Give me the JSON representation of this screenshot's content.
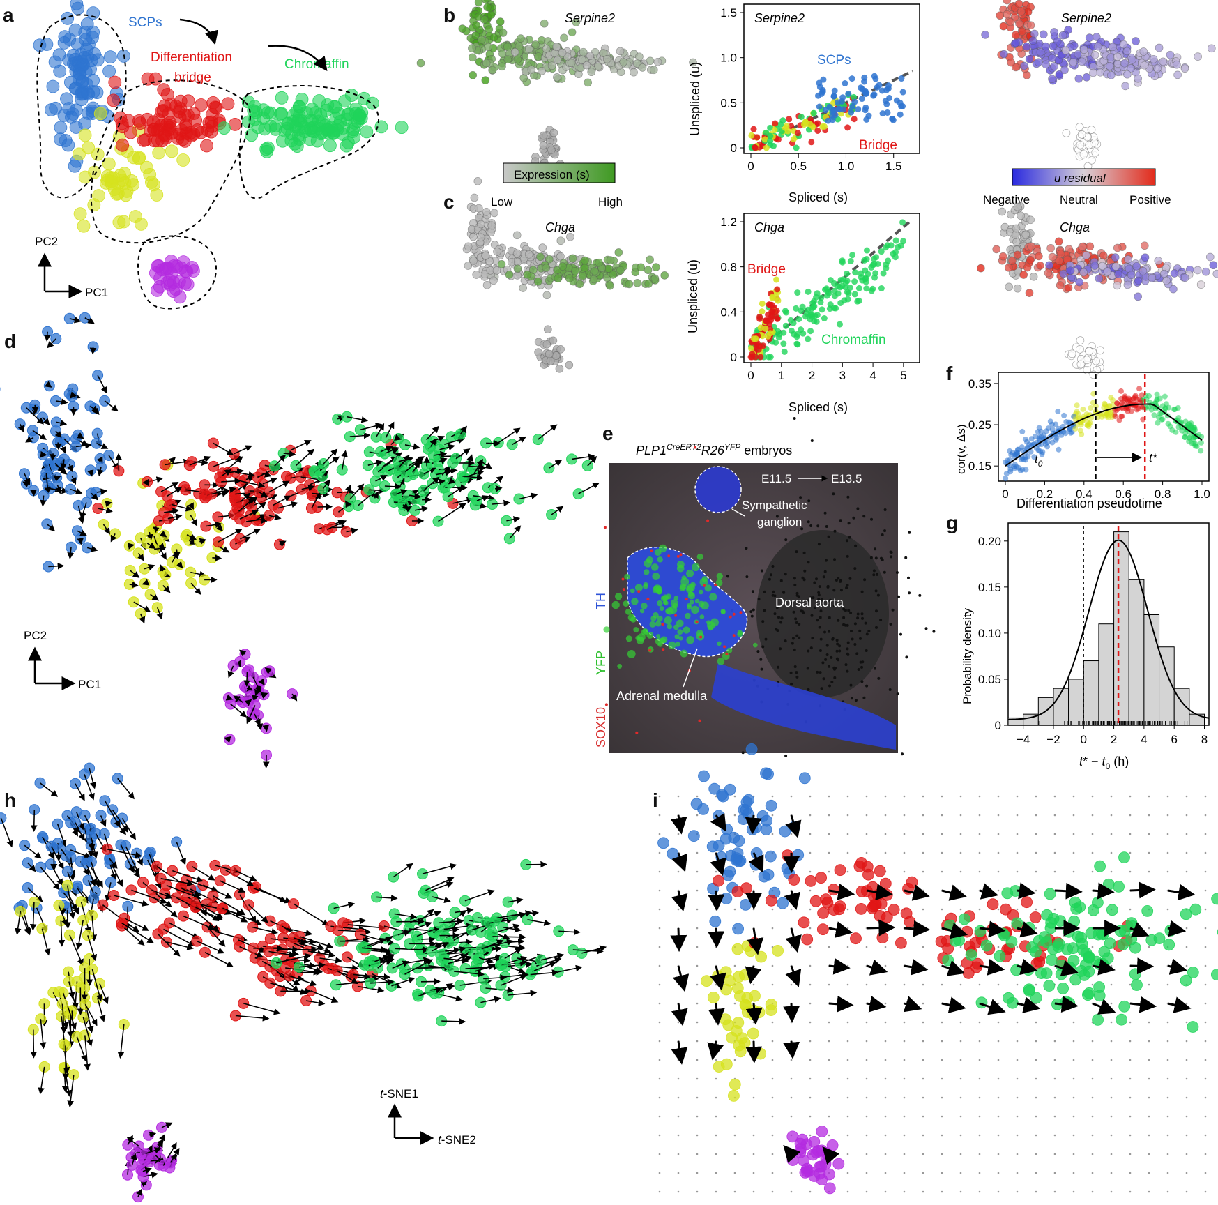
{
  "panel_letters": [
    "a",
    "b",
    "c",
    "d",
    "e",
    "f",
    "g",
    "h",
    "i"
  ],
  "colors": {
    "scp": "#2f74d0",
    "bridge": "#e01616",
    "yellow": "#d6e21e",
    "chromaffin": "#1fd45a",
    "purple": "#b42be0",
    "grey": "#9a9a9a",
    "green_expr": "#4a9a2a"
  },
  "panel_a": {
    "labels": {
      "scps": "SCPs",
      "bridge_line1": "Differentiation",
      "bridge_line2": "bridge",
      "chromaffin": "Chromaffin"
    },
    "axes": {
      "x": "PC1",
      "y": "PC2"
    }
  },
  "panel_b": {
    "gene": "Serpine2",
    "legend": {
      "title": "Expression (s)",
      "low": "Low",
      "high": "High"
    },
    "scatter": {
      "xlabel": "Spliced (s)",
      "ylabel": "Unspliced (u)",
      "xticks": [
        "0",
        "0.5",
        "1.0",
        "1.5"
      ],
      "yticks": [
        "0",
        "0.5",
        "1.0",
        "1.5"
      ],
      "annotations": {
        "scps": "SCPs",
        "bridge": "Bridge"
      }
    },
    "residual_legend": {
      "title": "u residual",
      "negative": "Negative",
      "neutral": "Neutral",
      "positive": "Positive"
    }
  },
  "panel_c": {
    "gene": "Chga",
    "scatter": {
      "xlabel": "Spliced (s)",
      "ylabel": "Unspliced (u)",
      "xticks": [
        "0",
        "1",
        "2",
        "3",
        "4",
        "5"
      ],
      "yticks": [
        "0",
        "0.4",
        "0.8",
        "1.2"
      ],
      "annotations": {
        "bridge": "Bridge",
        "chromaffin": "Chromaffin"
      }
    }
  },
  "panel_d": {
    "axes": {
      "x": "PC1",
      "y": "PC2"
    }
  },
  "panel_e": {
    "title": "PLP1CreERT2R26YFP embryos",
    "title_base1": "PLP1",
    "title_sup1": "CreERT2",
    "title_base2": "R26",
    "title_sup2": "YFP",
    "title_tail": " embryos",
    "time_from": "E11.5",
    "time_to": "E13.5",
    "labels": {
      "ganglion1": "Sympathetic",
      "ganglion2": "ganglion",
      "aorta": "Dorsal aorta",
      "medulla": "Adrenal medulla"
    },
    "channels": [
      {
        "name": "TH",
        "color": "#2f54d8"
      },
      {
        "name": "YFP",
        "color": "#2fc02f"
      },
      {
        "name": "SOX10",
        "color": "#d82f2f"
      }
    ]
  },
  "panel_f": {
    "ylabel": "cor(v, Δs)",
    "xlabel": "Differentiation pseudotime",
    "xticks": [
      "0",
      "0.2",
      "0.4",
      "0.6",
      "0.8",
      "1.0"
    ],
    "yticks": [
      "0.15",
      "0.25",
      "0.35"
    ],
    "t0_label": "t0",
    "tstar_label": "t*",
    "t0_value": 0.46,
    "tstar_value": 0.71
  },
  "panel_g": {
    "ylabel": "Probability density",
    "xlabel": "t* − t0 (h)",
    "xticks": [
      "−4",
      "−2",
      "0",
      "2",
      "4",
      "6",
      "8"
    ],
    "yticks": [
      "0",
      "0.05",
      "0.10",
      "0.15",
      "0.20"
    ],
    "chart_data": {
      "type": "bar",
      "bin_edges": [
        -5,
        -4,
        -3,
        -2,
        -1,
        0,
        1,
        2,
        3,
        4,
        5,
        6,
        7,
        8
      ],
      "values": [
        0.008,
        0.012,
        0.03,
        0.04,
        0.05,
        0.07,
        0.11,
        0.21,
        0.158,
        0.12,
        0.085,
        0.04,
        0.012
      ],
      "xlim": [
        -5,
        8.3
      ],
      "ylim": [
        0,
        0.215
      ],
      "mean_line": 2.3
    }
  },
  "panel_h": {
    "axes": {
      "x": "t-SNE2",
      "y": "t-SNE1"
    }
  }
}
